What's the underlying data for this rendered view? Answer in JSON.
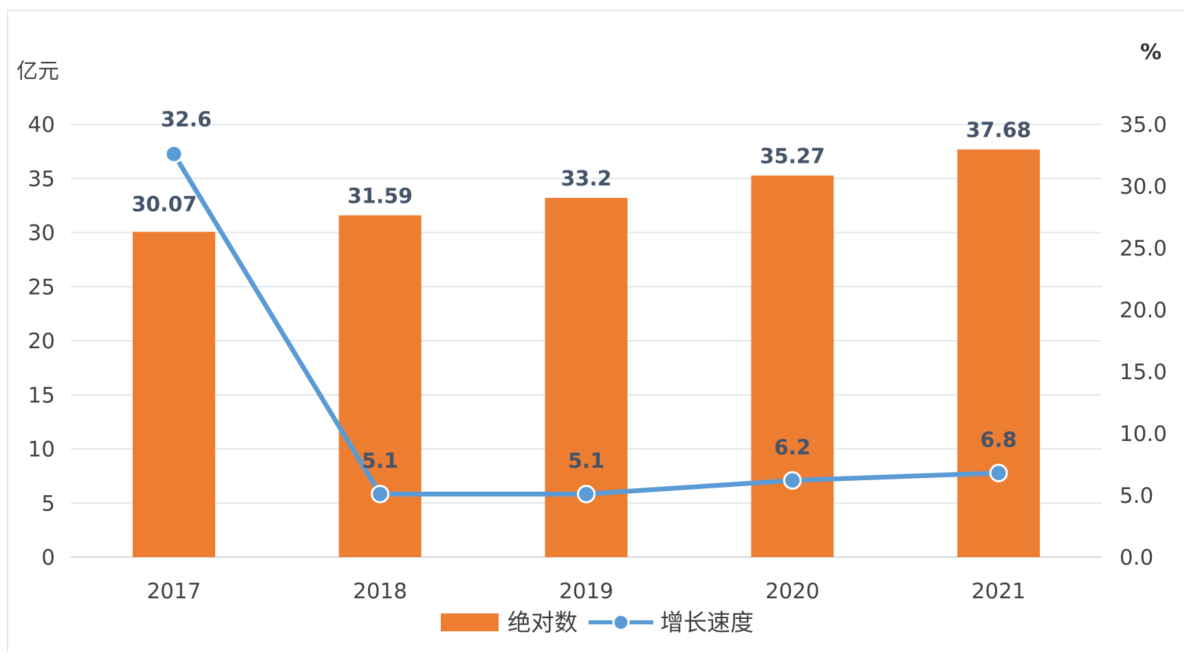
{
  "chart_data": {
    "type": "bar",
    "categories": [
      "2017",
      "2018",
      "2019",
      "2020",
      "2021"
    ],
    "left_axis": {
      "unit": "亿元",
      "ylim": [
        0,
        40
      ],
      "ticks": [
        "0",
        "5",
        "10",
        "15",
        "20",
        "25",
        "30",
        "35",
        "40"
      ]
    },
    "right_axis": {
      "unit": "%",
      "ylim": [
        0,
        35
      ],
      "ticks": [
        "0.0",
        "5.0",
        "10.0",
        "15.0",
        "20.0",
        "25.0",
        "30.0",
        "35.0"
      ]
    },
    "series": [
      {
        "name": "绝对数",
        "type": "bar",
        "axis": "left",
        "values": [
          30.07,
          31.59,
          33.2,
          35.27,
          37.68
        ],
        "labels": [
          "30.07",
          "31.59",
          "33.2",
          "35.27",
          "37.68"
        ],
        "color": "#ed7d31"
      },
      {
        "name": "增长速度",
        "type": "line",
        "axis": "right",
        "values": [
          32.6,
          5.1,
          5.1,
          6.2,
          6.8
        ],
        "labels": [
          "32.6",
          "5.1",
          "5.1",
          "6.2",
          "6.8"
        ],
        "color": "#5b9bd5"
      }
    ],
    "grid": true,
    "legend": "bottom"
  }
}
